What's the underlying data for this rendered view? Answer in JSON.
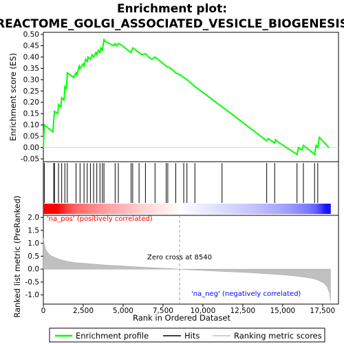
{
  "chart_data": {
    "type": "line",
    "title_line1": "Enrichment plot:",
    "title_line2": "REACTOME_GOLGI_ASSOCIATED_VESICLE_BIOGENESIS",
    "top_panel": {
      "ylabel": "Enrichment score (ES)",
      "ylim": [
        -0.05,
        0.5
      ],
      "yticks": [
        "-0.05",
        "0.00",
        "0.05",
        "0.10",
        "0.15",
        "0.20",
        "0.25",
        "0.30",
        "0.35",
        "0.40",
        "0.45",
        "0.50"
      ],
      "ytick_values": [
        -0.05,
        0,
        0.05,
        0.1,
        0.15,
        0.2,
        0.25,
        0.3,
        0.35,
        0.4,
        0.45,
        0.5
      ],
      "series_name": "Enrichment profile",
      "color": "#00ff00",
      "x": [
        0,
        60,
        600,
        650,
        700,
        900,
        950,
        1100,
        1150,
        1300,
        1350,
        1450,
        1500,
        1900,
        2050,
        2100,
        2250,
        2300,
        2500,
        2550,
        2650,
        2750,
        2800,
        2950,
        3050,
        3150,
        3300,
        3350,
        3450,
        3550,
        3600,
        3700,
        3800,
        3850,
        4400,
        4500,
        4600,
        4700,
        4850,
        5500,
        5600,
        5800,
        6000,
        6200,
        6400,
        6600,
        6800,
        7000,
        7700,
        8000,
        8300,
        8600,
        9000,
        9500,
        11200,
        11400,
        14000,
        14100,
        14500,
        14550,
        14600,
        15900,
        16000,
        16200,
        16300,
        17000,
        17100,
        17200,
        17300,
        17900
      ],
      "y": [
        0.0,
        0.1,
        0.07,
        0.12,
        0.16,
        0.15,
        0.19,
        0.18,
        0.22,
        0.21,
        0.27,
        0.26,
        0.33,
        0.31,
        0.33,
        0.32,
        0.36,
        0.35,
        0.37,
        0.36,
        0.39,
        0.38,
        0.4,
        0.39,
        0.41,
        0.4,
        0.42,
        0.41,
        0.43,
        0.42,
        0.44,
        0.43,
        0.48,
        0.47,
        0.45,
        0.46,
        0.45,
        0.46,
        0.455,
        0.42,
        0.44,
        0.43,
        0.42,
        0.41,
        0.415,
        0.4,
        0.39,
        0.4,
        0.36,
        0.35,
        0.33,
        0.32,
        0.3,
        0.27,
        0.18,
        0.17,
        0.03,
        0.04,
        0.02,
        0.035,
        0.03,
        -0.03,
        0.0,
        -0.01,
        0.01,
        -0.03,
        0.01,
        0.0,
        0.045,
        0.0
      ]
    },
    "hits": {
      "series_name": "Hits",
      "x": [
        60,
        650,
        700,
        950,
        1150,
        1350,
        1500,
        2050,
        2300,
        2550,
        2750,
        2950,
        3150,
        3350,
        3550,
        3700,
        3800,
        4500,
        4700,
        5500,
        5600,
        6000,
        6400,
        7000,
        7700,
        7800,
        8300,
        8800,
        9000,
        9500,
        11200,
        14000,
        14500,
        15900,
        16300,
        17000,
        17200
      ]
    },
    "ranked_panel": {
      "ylabel": "Ranked list metric (PreRanked)",
      "xlabel": "Rank in Ordered Dataset",
      "series_name": "Ranking metric scores",
      "ylim": [
        -1.3,
        2.0
      ],
      "yticks": [
        "-1.0",
        "-0.5",
        "0.0",
        "0.5",
        "1.0",
        "1.5",
        "2.0"
      ],
      "ytick_values": [
        -1.0,
        -0.5,
        0,
        0.5,
        1.0,
        1.5,
        2.0
      ],
      "xlim": [
        0,
        18500
      ],
      "xticks": [
        "0",
        "2,500",
        "5,000",
        "7,500",
        "10,000",
        "12,500",
        "15,000",
        "17,500"
      ],
      "xtick_values": [
        0,
        2500,
        5000,
        7500,
        10000,
        12500,
        15000,
        17500
      ],
      "x": [
        0,
        50,
        100,
        200,
        400,
        700,
        1000,
        1500,
        2000,
        3000,
        4000,
        5000,
        6000,
        7000,
        8000,
        8540,
        9000,
        10000,
        11000,
        12000,
        13000,
        14000,
        15000,
        16000,
        16500,
        17000,
        17300,
        17600,
        17800,
        17950,
        18000
      ],
      "y": [
        1.2,
        1.0,
        0.85,
        0.7,
        0.55,
        0.45,
        0.38,
        0.3,
        0.25,
        0.2,
        0.15,
        0.12,
        0.08,
        0.05,
        0.02,
        0.0,
        -0.02,
        -0.05,
        -0.08,
        -0.11,
        -0.14,
        -0.18,
        -0.22,
        -0.28,
        -0.32,
        -0.38,
        -0.45,
        -0.55,
        -0.7,
        -0.95,
        -1.25
      ],
      "zero_cross_label": "Zero cross at 8540",
      "zero_cross_x": 8540,
      "pos_label": "'na_pos' (positively correlated)",
      "neg_label": "'na_neg' (negatively correlated)",
      "pos_color": "#ff0000",
      "neg_color": "#0000ff"
    },
    "legend": {
      "placement": "bottom",
      "items": [
        {
          "label": "Enrichment profile",
          "color": "#00ff00"
        },
        {
          "label": "Hits",
          "color": "#000000"
        },
        {
          "label": "Ranking metric scores",
          "color": "#c0c0c0"
        }
      ]
    }
  }
}
